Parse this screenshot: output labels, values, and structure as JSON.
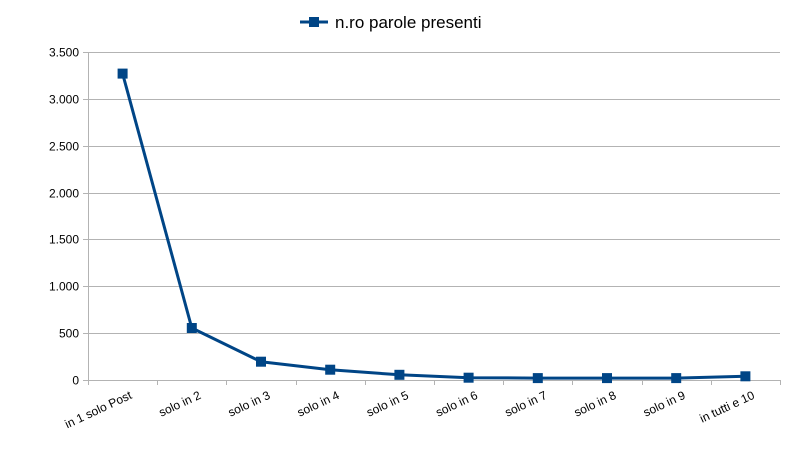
{
  "chart_data": {
    "type": "line",
    "title": "",
    "xlabel": "",
    "ylabel": "",
    "categories": [
      "in 1 solo Post",
      "solo in 2",
      "solo in 3",
      "solo in 4",
      "solo in 5",
      "solo in 6",
      "solo in 7",
      "solo in 8",
      "solo in 9",
      "in tutti e 10"
    ],
    "series": [
      {
        "name": "n.ro parole presenti",
        "values": [
          3270,
          555,
          195,
          110,
          55,
          25,
          20,
          20,
          20,
          40
        ],
        "color": "#004586",
        "marker": "square"
      }
    ],
    "ylim": [
      0,
      3500
    ],
    "yticks": [
      0,
      500,
      1000,
      1500,
      2000,
      2500,
      3000,
      3500
    ],
    "ytick_labels": [
      "0",
      "500",
      "1.000",
      "1.500",
      "2.000",
      "2.500",
      "3.000",
      "3.500"
    ],
    "grid": true,
    "legend_position": "top"
  }
}
